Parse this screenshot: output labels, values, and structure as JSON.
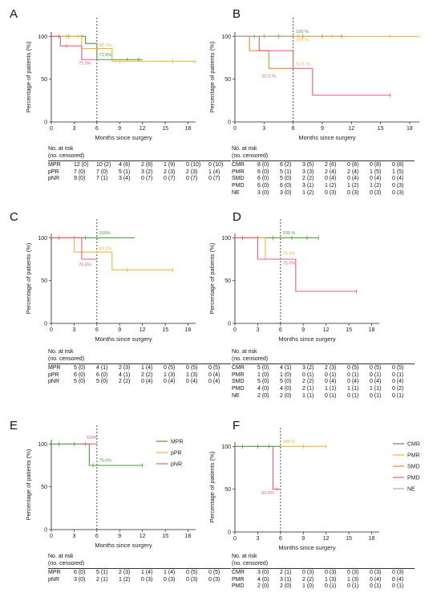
{
  "common": {
    "ylabel": "Percentage of patients (%)",
    "xlabel": "Months since surgery",
    "x_ticks": [
      "0",
      "3",
      "6",
      "9",
      "12",
      "15",
      "18"
    ],
    "y_ticks": [
      "0",
      "50",
      "100"
    ],
    "risk_header_line1": "No. at risk",
    "risk_header_line2": "(no. censored)"
  },
  "colors": {
    "green": "#4e9a3a",
    "orange": "#f0b43c",
    "pink": "#ee5b82",
    "darkorange": "#e88a2a",
    "gray": "#aaaaaa"
  },
  "chart_data": [
    {
      "type": "line",
      "panel_letter": "A",
      "xlim": [
        0,
        19
      ],
      "ylim": [
        0,
        105
      ],
      "vline_x": 6,
      "series": [
        {
          "name": "MPR",
          "color": "green",
          "steps": [
            [
              0,
              100
            ],
            [
              4.5,
              91.7
            ],
            [
              6,
              72.9
            ],
            [
              12,
              72.9
            ]
          ],
          "censor": [
            1,
            2.3,
            4,
            10,
            11.5
          ]
        },
        {
          "name": "pPR",
          "color": "orange",
          "steps": [
            [
              0,
              100
            ],
            [
              4,
              85.7
            ],
            [
              8,
              71
            ],
            [
              19,
              69
            ]
          ],
          "censor": [
            2,
            3.5,
            9,
            16
          ]
        },
        {
          "name": "pNR",
          "color": "pink",
          "steps": [
            [
              0,
              100
            ],
            [
              1.2,
              88.9
            ],
            [
              4,
              72.9
            ],
            [
              6,
              72.9
            ]
          ],
          "censor": [
            2
          ]
        }
      ],
      "annotations": [
        {
          "text": "85.7%",
          "color": "orange",
          "x": 6.3,
          "y": 88
        },
        {
          "text": "72.9%",
          "color": "green",
          "x": 6.3,
          "y": 77
        },
        {
          "text": "72.9%",
          "color": "pink",
          "x": 3.6,
          "y": 67
        }
      ],
      "risk_rows": [
        {
          "label": "MPR",
          "values": [
            "12 (0)",
            "10 (2)",
            "4 (6)",
            "2 (8)",
            "1 (9)",
            "0 (10)",
            "0 (10)"
          ]
        },
        {
          "label": "pPR",
          "values": [
            "7 (0)",
            "7 (0)",
            "5 (1)",
            "3 (2)",
            "2 (3)",
            "2 (3)",
            "1 (4)"
          ]
        },
        {
          "label": "pNR",
          "values": [
            "9 (0)",
            "7 (1)",
            "3 (4)",
            "0 (7)",
            "0 (7)",
            "0 (7)",
            "0 (7)"
          ]
        }
      ]
    },
    {
      "type": "line",
      "panel_letter": "B",
      "xlim": [
        0,
        19
      ],
      "ylim": [
        0,
        105
      ],
      "vline_x": 6,
      "series": [
        {
          "name": "CMR",
          "color": "green",
          "steps": [
            [
              0,
              100
            ],
            [
              11,
              100
            ]
          ],
          "censor": [
            2,
            3,
            4.5,
            7,
            9,
            11
          ]
        },
        {
          "name": "PMR",
          "color": "orange",
          "steps": [
            [
              0,
              100
            ],
            [
              19,
              100
            ]
          ],
          "censor": [
            6.5,
            10,
            16
          ]
        },
        {
          "name": "SMD",
          "color": "darkorange",
          "steps": [
            [
              0,
              100
            ],
            [
              1.5,
              83.3
            ],
            [
              3.5,
              62.5
            ],
            [
              6,
              62.5
            ]
          ],
          "censor": []
        },
        {
          "name": "PMD",
          "color": "pink",
          "steps": [
            [
              0,
              100
            ],
            [
              2.5,
              83.3
            ],
            [
              6,
              62.5
            ],
            [
              8,
              31.3
            ],
            [
              16,
              31.3
            ]
          ],
          "censor": [
            16
          ]
        },
        {
          "name": "NE",
          "color": "gray",
          "steps": [
            [
              0,
              100
            ],
            [
              6,
              100
            ]
          ],
          "censor": []
        }
      ],
      "annotations": [
        {
          "text": "100 %",
          "color": "green",
          "x": 6.3,
          "y": 104
        },
        {
          "text": "100 %",
          "color": "orange",
          "x": 6.3,
          "y": 94
        },
        {
          "text": "62.5 %",
          "color": "orange",
          "x": 6.3,
          "y": 66
        },
        {
          "text": "62.5 %",
          "color": "pink",
          "x": 2.8,
          "y": 52
        }
      ],
      "risk_rows": [
        {
          "label": "CMR",
          "values": [
            "8 (0)",
            "6 (2)",
            "3 (5)",
            "2 (6)",
            "0 (8)",
            "0 (8)",
            "0 (8)"
          ]
        },
        {
          "label": "PMR",
          "values": [
            "6 (0)",
            "5 (1)",
            "3 (3)",
            "2 (4)",
            "2 (4)",
            "1 (5)",
            "1 (5)"
          ]
        },
        {
          "label": "SMD",
          "values": [
            "6 (0)",
            "5 (0)",
            "2 (2)",
            "0 (4)",
            "0 (4)",
            "0 (4)",
            "0 (4)"
          ]
        },
        {
          "label": "PMD",
          "values": [
            "6 (0)",
            "6 (0)",
            "3 (1)",
            "1 (2)",
            "1 (2)",
            "1 (2)",
            "0 (3)"
          ]
        },
        {
          "label": "NE",
          "values": [
            "3 (0)",
            "3 (0)",
            "1 (2)",
            "0 (3)",
            "0 (3)",
            "0 (3)",
            "0 (3)"
          ]
        }
      ]
    },
    {
      "type": "line",
      "panel_letter": "C",
      "xlim": [
        0,
        19
      ],
      "ylim": [
        0,
        105
      ],
      "vline_x": 6,
      "series": [
        {
          "name": "MPR",
          "color": "green",
          "steps": [
            [
              0,
              100
            ],
            [
              11,
              100
            ]
          ],
          "censor": [
            1,
            3,
            4.5
          ]
        },
        {
          "name": "pPR",
          "color": "orange",
          "steps": [
            [
              0,
              100
            ],
            [
              3,
              83.3
            ],
            [
              8,
              62.5
            ],
            [
              16,
              62.5
            ]
          ],
          "censor": [
            10,
            16
          ]
        },
        {
          "name": "pNR",
          "color": "pink",
          "steps": [
            [
              0,
              100
            ],
            [
              4,
              75
            ],
            [
              6,
              75
            ]
          ],
          "censor": []
        }
      ],
      "annotations": [
        {
          "text": "100%",
          "color": "green",
          "x": 6.3,
          "y": 104
        },
        {
          "text": "83.3%",
          "color": "orange",
          "x": 6.3,
          "y": 86
        },
        {
          "text": "75.0%",
          "color": "pink",
          "x": 3.6,
          "y": 67
        }
      ],
      "risk_rows": [
        {
          "label": "MPR",
          "values": [
            "5 (0)",
            "4 (1)",
            "2 (3)",
            "1 (4)",
            "0 (5)",
            "0 (5)",
            "0 (5)"
          ]
        },
        {
          "label": "pPR",
          "values": [
            "6 (0)",
            "6 (0)",
            "4 (1)",
            "2 (2)",
            "1 (3)",
            "1 (3)",
            "0 (4)"
          ]
        },
        {
          "label": "pNR",
          "values": [
            "5 (0)",
            "5 (0)",
            "2 (2)",
            "0 (4)",
            "0 (4)",
            "0 (4)",
            "0 (4)"
          ]
        }
      ]
    },
    {
      "type": "line",
      "panel_letter": "D",
      "xlim": [
        0,
        19
      ],
      "ylim": [
        0,
        105
      ],
      "vline_x": 6,
      "series": [
        {
          "name": "CMR",
          "color": "green",
          "steps": [
            [
              0,
              100
            ],
            [
              11,
              100
            ]
          ],
          "censor": [
            1,
            3,
            5,
            7.5,
            9.5,
            11
          ]
        },
        {
          "name": "PMR",
          "color": "orange",
          "steps": [
            [
              0,
              100
            ],
            [
              4,
              75
            ],
            [
              6,
              75
            ]
          ],
          "censor": []
        },
        {
          "name": "PMD",
          "color": "pink",
          "steps": [
            [
              0,
              100
            ],
            [
              3,
              75
            ],
            [
              8,
              37.5
            ],
            [
              16,
              37.5
            ]
          ],
          "censor": [
            16
          ]
        }
      ],
      "annotations": [
        {
          "text": "100 %",
          "color": "green",
          "x": 6.3,
          "y": 104
        },
        {
          "text": "75.0%",
          "color": "orange",
          "x": 6.3,
          "y": 80
        },
        {
          "text": "75.0%",
          "color": "pink",
          "x": 6.3,
          "y": 69
        }
      ],
      "risk_rows": [
        {
          "label": "CMR",
          "values": [
            "5 (0)",
            "4 (1)",
            "3 (2)",
            "2 (3)",
            "0 (5)",
            "0 (5)",
            "0 (5)"
          ]
        },
        {
          "label": "PMR",
          "values": [
            "1 (0)",
            "1 (0)",
            "0 (1)",
            "0 (1)",
            "0 (1)",
            "0 (1)",
            "0 (1)"
          ]
        },
        {
          "label": "SMD",
          "values": [
            "5 (0)",
            "5 (0)",
            "2 (2)",
            "0 (4)",
            "0 (4)",
            "0 (4)",
            "0 (4)"
          ]
        },
        {
          "label": "PMD",
          "values": [
            "4 (0)",
            "4 (0)",
            "2 (1)",
            "1 (1)",
            "1 (1)",
            "1 (1)",
            "0 (2)"
          ]
        },
        {
          "label": "NE",
          "values": [
            "2 (0)",
            "2 (0)",
            "1 (1)",
            "0 (1)",
            "0 (1)",
            "0 (1)",
            "0 (1)"
          ]
        }
      ]
    },
    {
      "type": "line",
      "panel_letter": "E",
      "xlim": [
        0,
        19
      ],
      "ylim": [
        0,
        105
      ],
      "vline_x": 6,
      "legend": [
        "MPR",
        "pPR",
        "pNR"
      ],
      "series": [
        {
          "name": "MPR",
          "color": "green",
          "steps": [
            [
              0,
              100
            ],
            [
              5,
              75
            ],
            [
              12,
              75
            ]
          ],
          "censor": [
            1,
            3,
            5.5,
            12
          ]
        },
        {
          "name": "pPR",
          "color": "orange",
          "steps": [],
          "censor": []
        },
        {
          "name": "pNR",
          "color": "pink",
          "steps": [
            [
              4,
              100
            ],
            [
              6,
              100
            ]
          ],
          "censor": [
            4.5
          ]
        }
      ],
      "annotations": [
        {
          "text": "100%",
          "color": "pink",
          "x": 4.6,
          "y": 106
        },
        {
          "text": "75.0%",
          "color": "green",
          "x": 6.3,
          "y": 79
        }
      ],
      "risk_rows": [
        {
          "label": "MPR",
          "values": [
            "6 (0)",
            "5 (1)",
            "2 (3)",
            "1 (4)",
            "1 (4)",
            "0 (5)",
            "0 (5)"
          ]
        },
        {
          "label": "pNR",
          "values": [
            "3 (0)",
            "2 (1)",
            "1 (2)",
            "0 (3)",
            "0 (3)",
            "0 (3)",
            "0 (3)"
          ]
        }
      ]
    },
    {
      "type": "line",
      "panel_letter": "F",
      "xlim": [
        0,
        19
      ],
      "ylim": [
        0,
        105
      ],
      "vline_x": 6,
      "legend": [
        "CMR",
        "PMR",
        "SMD",
        "PMD",
        "NE"
      ],
      "series": [
        {
          "name": "CMR",
          "color": "green",
          "steps": [
            [
              0,
              100
            ],
            [
              6,
              100
            ]
          ],
          "censor": [
            1,
            3,
            4.5
          ]
        },
        {
          "name": "PMR",
          "color": "orange",
          "steps": [
            [
              6,
              100
            ],
            [
              12,
              100
            ]
          ],
          "censor": [
            9,
            12
          ]
        },
        {
          "name": "SMD",
          "color": "darkorange",
          "steps": [],
          "censor": []
        },
        {
          "name": "PMD",
          "color": "pink",
          "steps": [
            [
              5,
              100
            ],
            [
              5,
              50
            ],
            [
              6,
              50
            ]
          ],
          "censor": [
            5.5
          ]
        },
        {
          "name": "NE",
          "color": "gray",
          "steps": [],
          "censor": []
        }
      ],
      "annotations": [
        {
          "text": "100 %",
          "color": "orange",
          "x": 6.3,
          "y": 104
        },
        {
          "text": "50.0%",
          "color": "pink",
          "x": 3.5,
          "y": 44
        }
      ],
      "risk_rows": [
        {
          "label": "CMR",
          "values": [
            "3 (0)",
            "2 (1)",
            "0 (3)",
            "0 (3)",
            "0 (3)",
            "0 (3)",
            "0 (3)"
          ]
        },
        {
          "label": "PMR",
          "values": [
            "4 (0)",
            "3 (1)",
            "2 (2)",
            "1 (3)",
            "1 (3)",
            "0 (4)",
            "0 (4)"
          ]
        },
        {
          "label": "PMD",
          "values": [
            "2 (0)",
            "2 (0)",
            "1 (0)",
            "0 (1)",
            "0 (1)",
            "0 (1)",
            "0 (1)"
          ]
        }
      ]
    }
  ]
}
